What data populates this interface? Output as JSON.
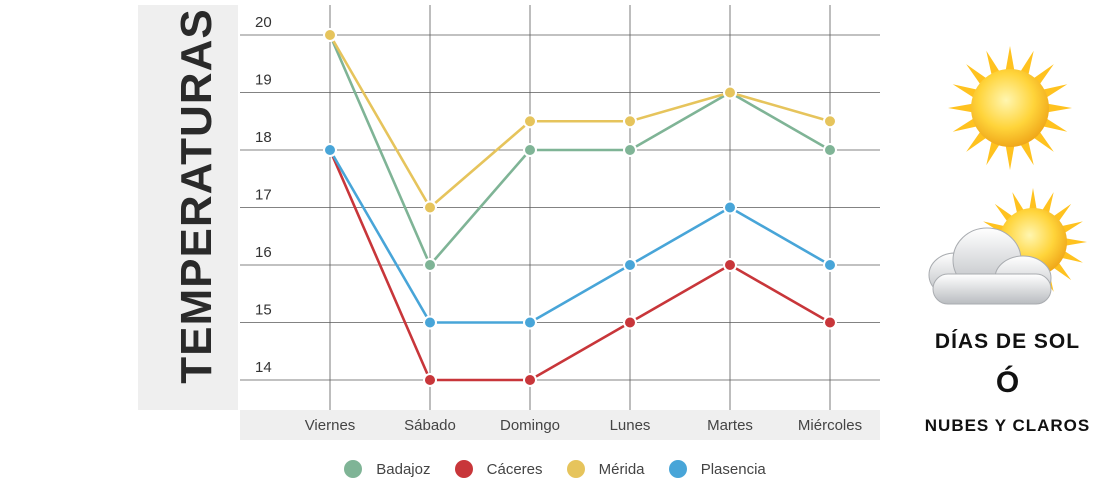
{
  "chart_data": {
    "type": "line",
    "ylabel": "TEMPERATURAS",
    "xlabel": "",
    "title": "",
    "categories": [
      "Viernes",
      "Sábado",
      "Domingo",
      "Lunes",
      "Martes",
      "Miércoles"
    ],
    "yticks": [
      "14",
      "15",
      "16",
      "17",
      "18",
      "19",
      "20"
    ],
    "ylim": [
      13.5,
      20.2
    ],
    "grid": true,
    "legend_position": "bottom",
    "series": [
      {
        "name": "Badajoz",
        "color": "#7fb496",
        "values": [
          20,
          16,
          18,
          18,
          19,
          18
        ]
      },
      {
        "name": "Cáceres",
        "color": "#c8363a",
        "values": [
          18,
          14,
          14,
          15,
          16,
          15
        ]
      },
      {
        "name": "Mérida",
        "color": "#e6c45c",
        "values": [
          20,
          17,
          18.5,
          18.5,
          19,
          18.5
        ]
      },
      {
        "name": "Plasencia",
        "color": "#48a5d8",
        "values": [
          18,
          15,
          15,
          16,
          17,
          16
        ]
      }
    ]
  },
  "side_panel": {
    "line1": "DÍAS DE SOL",
    "line2": "Ó",
    "line3": "NUBES Y CLAROS",
    "icons": [
      "sun-icon",
      "sun-behind-cloud-icon"
    ]
  }
}
